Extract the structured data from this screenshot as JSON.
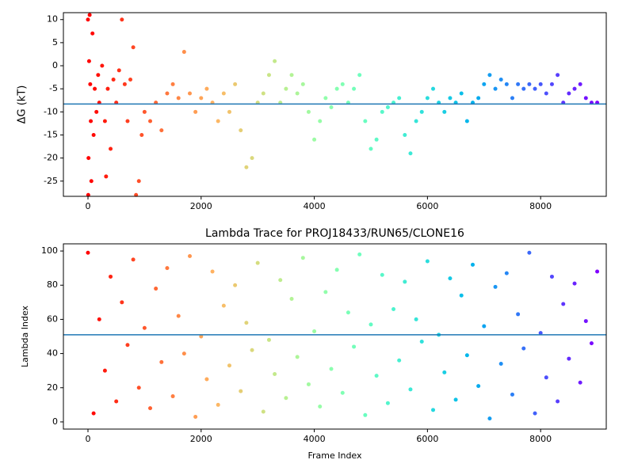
{
  "chart_data": [
    {
      "type": "scatter",
      "ylabel": "ΔG (kT)",
      "x": [
        0,
        5,
        10,
        20,
        30,
        40,
        50,
        60,
        80,
        100,
        120,
        150,
        180,
        200,
        250,
        300,
        320,
        350,
        400,
        450,
        500,
        550,
        600,
        650,
        700,
        750,
        800,
        850,
        900,
        950,
        1000,
        1100,
        1200,
        1300,
        1400,
        1500,
        1600,
        1700,
        1800,
        1900,
        2000,
        2100,
        2200,
        2300,
        2400,
        2500,
        2600,
        2700,
        2800,
        2900,
        3000,
        3100,
        3200,
        3300,
        3400,
        3500,
        3600,
        3700,
        3800,
        3900,
        4000,
        4100,
        4200,
        4300,
        4400,
        4500,
        4600,
        4700,
        4800,
        4900,
        5000,
        5100,
        5200,
        5300,
        5400,
        5500,
        5600,
        5700,
        5800,
        5900,
        6000,
        6100,
        6200,
        6300,
        6400,
        6500,
        6600,
        6700,
        6800,
        6900,
        7000,
        7100,
        7200,
        7300,
        7400,
        7500,
        7600,
        7700,
        7800,
        7900,
        8000,
        8100,
        8200,
        8300,
        8400,
        8500,
        8600,
        8700,
        8800,
        8900,
        9000
      ],
      "values": [
        10,
        -28,
        -20,
        1,
        11,
        -4,
        -12,
        -25,
        7,
        -15,
        -5,
        -10,
        -2,
        -8,
        0,
        -12,
        -24,
        -5,
        -18,
        -3,
        -8,
        -1,
        10,
        -4,
        -12,
        -3,
        4,
        -28,
        -25,
        -15,
        -10,
        -12,
        -8,
        -14,
        -6,
        -4,
        -7,
        3,
        -6,
        -10,
        -7,
        -5,
        -8,
        -12,
        -6,
        -10,
        -4,
        -14,
        -22,
        -20,
        -8,
        -6,
        -2,
        1,
        -8,
        -5,
        -2,
        -6,
        -4,
        -10,
        -16,
        -12,
        -7,
        -9,
        -5,
        -4,
        -8,
        -5,
        -2,
        -12,
        -18,
        -16,
        -10,
        -9,
        -8,
        -7,
        -15,
        -19,
        -12,
        -10,
        -7,
        -5,
        -8,
        -10,
        -7,
        -8,
        -6,
        -12,
        -8,
        -7,
        -4,
        -2,
        -5,
        -3,
        -4,
        -7,
        -4,
        -5,
        -4,
        -5,
        -4,
        -6,
        -4,
        -2,
        -8,
        -6,
        -5,
        -4,
        -7,
        -8,
        -8
      ],
      "xlim": [
        -434,
        9160
      ],
      "ylim": [
        -28.3,
        11.5
      ],
      "xticks": [
        0,
        2000,
        4000,
        6000,
        8000
      ],
      "yticks": [
        -25,
        -20,
        -15,
        -10,
        -5,
        0,
        5,
        10
      ],
      "hline": -8.3,
      "hline_color": "#1f77b4",
      "colormap": "rainbow_r"
    },
    {
      "type": "scatter",
      "title": "Lambda Trace for PROJ18433/RUN65/CLONE16",
      "xlabel": "Frame Index",
      "ylabel": "Lambda Index",
      "x": [
        0,
        100,
        200,
        300,
        400,
        500,
        600,
        700,
        800,
        900,
        1000,
        1100,
        1200,
        1300,
        1400,
        1500,
        1600,
        1700,
        1800,
        1900,
        2000,
        2100,
        2200,
        2300,
        2400,
        2500,
        2600,
        2700,
        2800,
        2900,
        3000,
        3100,
        3200,
        3300,
        3400,
        3500,
        3600,
        3700,
        3800,
        3900,
        4000,
        4100,
        4200,
        4300,
        4400,
        4500,
        4600,
        4700,
        4800,
        4900,
        5000,
        5100,
        5200,
        5300,
        5400,
        5500,
        5600,
        5700,
        5800,
        5900,
        6000,
        6100,
        6200,
        6300,
        6400,
        6500,
        6600,
        6700,
        6800,
        6900,
        7000,
        7100,
        7200,
        7300,
        7400,
        7500,
        7600,
        7700,
        7800,
        7900,
        8000,
        8100,
        8200,
        8300,
        8400,
        8500,
        8600,
        8700,
        8800,
        8900,
        9000
      ],
      "values": [
        99,
        5,
        60,
        30,
        85,
        12,
        70,
        45,
        95,
        20,
        55,
        8,
        78,
        35,
        90,
        15,
        62,
        40,
        97,
        3,
        50,
        25,
        88,
        10,
        68,
        33,
        80,
        18,
        58,
        42,
        93,
        6,
        48,
        28,
        83,
        14,
        72,
        38,
        96,
        22,
        53,
        9,
        76,
        31,
        89,
        17,
        64,
        44,
        98,
        4,
        57,
        27,
        86,
        11,
        66,
        36,
        82,
        19,
        60,
        47,
        94,
        7,
        51,
        29,
        84,
        13,
        74,
        39,
        92,
        21,
        56,
        2,
        79,
        34,
        87,
        16,
        63,
        43,
        99,
        5,
        52,
        26,
        85,
        12,
        69,
        37,
        81,
        23,
        59,
        46,
        88
      ],
      "xlim": [
        -434,
        9160
      ],
      "ylim": [
        -4.2,
        104.2
      ],
      "xticks": [
        0,
        2000,
        4000,
        6000,
        8000
      ],
      "yticks": [
        0,
        20,
        40,
        60,
        80,
        100
      ],
      "hline": 51,
      "hline_color": "#1f77b4",
      "colormap": "rainbow_r"
    }
  ]
}
